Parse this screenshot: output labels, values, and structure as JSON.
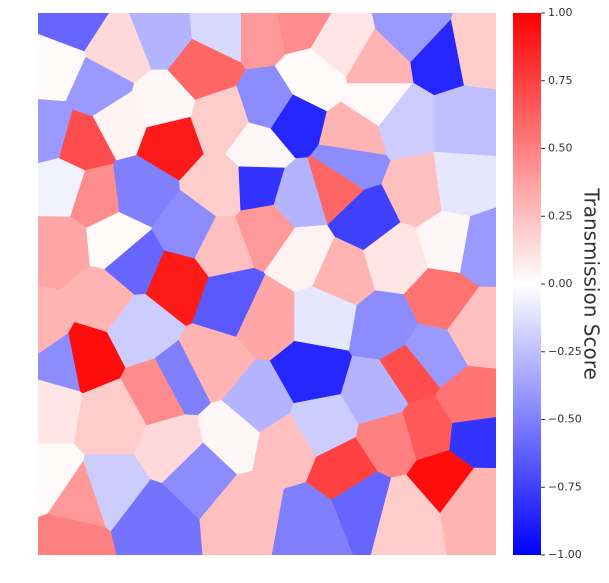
{
  "chart_data": {
    "type": "voronoi",
    "colormap": "bwr",
    "clim": [
      -1,
      1
    ],
    "xlim": [
      0,
      100
    ],
    "ylim": [
      0,
      100
    ],
    "colorbar": {
      "label": "Transmission Score",
      "ticks": [
        {
          "value": 1,
          "label": "1.00"
        },
        {
          "value": 0.75,
          "label": "0.75"
        },
        {
          "value": 0.5,
          "label": "0.50"
        },
        {
          "value": 0.25,
          "label": "0.25"
        },
        {
          "value": 0,
          "label": "0.00"
        },
        {
          "value": -0.25,
          "label": "−0.25"
        },
        {
          "value": -0.5,
          "label": "−0.50"
        },
        {
          "value": -0.75,
          "label": "−0.75"
        },
        {
          "value": -1,
          "label": "−1.00"
        }
      ]
    },
    "cells": [
      {
        "x": 28.8,
        "y": 76.6,
        "value": 0.9
      },
      {
        "x": 9.6,
        "y": 76.2,
        "value": 0.7
      },
      {
        "x": 10.3,
        "y": 36.9,
        "value": 0.95
      },
      {
        "x": 30.1,
        "y": 50.7,
        "value": 0.9
      },
      {
        "x": 88.4,
        "y": 14.2,
        "value": 0.95
      },
      {
        "x": 88.4,
        "y": 91.9,
        "value": -0.85
      },
      {
        "x": 55.5,
        "y": 80.3,
        "value": -0.85
      },
      {
        "x": 47.8,
        "y": 68.3,
        "value": -0.8
      },
      {
        "x": 59.8,
        "y": 33.6,
        "value": -0.85
      },
      {
        "x": 71.6,
        "y": 62.2,
        "value": -0.75
      },
      {
        "x": 95.2,
        "y": 22.1,
        "value": -0.8
      },
      {
        "x": 42.4,
        "y": 47,
        "value": -0.65
      },
      {
        "x": 81.2,
        "y": 34,
        "value": 0.7
      },
      {
        "x": 85.1,
        "y": 23,
        "value": 0.65
      },
      {
        "x": 94.3,
        "y": 27.7,
        "value": 0.55
      },
      {
        "x": 48.5,
        "y": 97,
        "value": 0.4
      },
      {
        "x": 57,
        "y": 98.5,
        "value": 0.45
      },
      {
        "x": 36,
        "y": 90,
        "value": 0.6
      },
      {
        "x": 65,
        "y": 68,
        "value": 0.6
      },
      {
        "x": 67,
        "y": 15.5,
        "value": 0.75
      },
      {
        "x": 7,
        "y": 99,
        "value": -0.6
      },
      {
        "x": 82,
        "y": 97,
        "value": -0.4
      },
      {
        "x": 2,
        "y": 78,
        "value": -0.4
      },
      {
        "x": 22,
        "y": 67,
        "value": -0.5
      },
      {
        "x": 21,
        "y": 54,
        "value": -0.6
      },
      {
        "x": 5,
        "y": 36,
        "value": -0.45
      },
      {
        "x": 31,
        "y": 32,
        "value": -0.5
      },
      {
        "x": 71,
        "y": 10,
        "value": -0.6
      },
      {
        "x": 59,
        "y": 6,
        "value": -0.5
      },
      {
        "x": 24.5,
        "y": 6.5,
        "value": -0.55
      },
      {
        "x": 26.6,
        "y": 30,
        "value": 0.45
      },
      {
        "x": 88,
        "y": 47,
        "value": 0.55
      },
      {
        "x": 49.5,
        "y": 60,
        "value": 0.4
      },
      {
        "x": 12.4,
        "y": 66,
        "value": 0.45
      },
      {
        "x": 7,
        "y": 3,
        "value": 0.5
      },
      {
        "x": 9,
        "y": 10,
        "value": 0.4
      },
      {
        "x": 77,
        "y": 21,
        "value": 0.5
      },
      {
        "x": 69,
        "y": 77.5,
        "value": 0.3
      },
      {
        "x": 68,
        "y": 72,
        "value": -0.45
      },
      {
        "x": 50.6,
        "y": 83,
        "value": -0.45
      },
      {
        "x": 33,
        "y": 60,
        "value": -0.45
      },
      {
        "x": 75.8,
        "y": 42,
        "value": -0.45
      },
      {
        "x": 13.5,
        "y": 86,
        "value": -0.4
      },
      {
        "x": 35,
        "y": 15.7,
        "value": -0.45
      },
      {
        "x": 85.6,
        "y": 37,
        "value": -0.4
      },
      {
        "x": 96.5,
        "y": 57,
        "value": -0.4
      },
      {
        "x": 4.8,
        "y": 57,
        "value": 0.35
      },
      {
        "x": 0.5,
        "y": 41.5,
        "value": 0.3
      },
      {
        "x": 18,
        "y": 93,
        "value": 0.15
      },
      {
        "x": 27,
        "y": 96,
        "value": -0.3
      },
      {
        "x": 40,
        "y": 97,
        "value": -0.15
      },
      {
        "x": 66,
        "y": 94,
        "value": 0.1
      },
      {
        "x": 74,
        "y": 90,
        "value": 0.3
      },
      {
        "x": 95,
        "y": 93,
        "value": 0.2
      },
      {
        "x": 93,
        "y": 80,
        "value": -0.25
      },
      {
        "x": 80,
        "y": 80,
        "value": -0.2
      },
      {
        "x": 40,
        "y": 80,
        "value": 0.2
      },
      {
        "x": 18,
        "y": 80,
        "value": 0.05
      },
      {
        "x": 3,
        "y": 90,
        "value": 0.02
      },
      {
        "x": 60,
        "y": 88,
        "value": 0.02
      },
      {
        "x": 83,
        "y": 67,
        "value": 0.25
      },
      {
        "x": 92,
        "y": 68,
        "value": -0.1
      },
      {
        "x": 57,
        "y": 66,
        "value": -0.3
      },
      {
        "x": 40,
        "y": 68,
        "value": 0.2
      },
      {
        "x": 5,
        "y": 68,
        "value": -0.05
      },
      {
        "x": 17,
        "y": 58,
        "value": 0.02
      },
      {
        "x": 40,
        "y": 57,
        "value": 0.25
      },
      {
        "x": 58,
        "y": 55,
        "value": 0.05
      },
      {
        "x": 66,
        "y": 52,
        "value": 0.3
      },
      {
        "x": 78,
        "y": 55,
        "value": 0.1
      },
      {
        "x": 14,
        "y": 47,
        "value": 0.3
      },
      {
        "x": 22,
        "y": 42,
        "value": -0.2
      },
      {
        "x": 50,
        "y": 44,
        "value": 0.35
      },
      {
        "x": 62,
        "y": 44,
        "value": -0.1
      },
      {
        "x": 96,
        "y": 42,
        "value": 0.25
      },
      {
        "x": 38,
        "y": 35,
        "value": 0.3
      },
      {
        "x": 48,
        "y": 28,
        "value": -0.3
      },
      {
        "x": 2,
        "y": 27,
        "value": 0.1
      },
      {
        "x": 16,
        "y": 25,
        "value": 0.2
      },
      {
        "x": 54,
        "y": 20,
        "value": 0.25
      },
      {
        "x": 62,
        "y": 24,
        "value": -0.2
      },
      {
        "x": 74,
        "y": 30,
        "value": -0.3
      },
      {
        "x": 95,
        "y": 10,
        "value": 0.3
      },
      {
        "x": 80,
        "y": 8,
        "value": 0.2
      },
      {
        "x": 46,
        "y": 8,
        "value": 0.25
      },
      {
        "x": 16,
        "y": 12,
        "value": -0.2
      },
      {
        "x": 2,
        "y": 14,
        "value": 0.02
      },
      {
        "x": 30,
        "y": 20,
        "value": 0.15
      },
      {
        "x": 42,
        "y": 22,
        "value": 0.03
      },
      {
        "x": 90,
        "y": 58,
        "value": 0.03
      },
      {
        "x": 27,
        "y": 83,
        "value": 0.03
      },
      {
        "x": 48,
        "y": 75,
        "value": 0.03
      },
      {
        "x": 74,
        "y": 84,
        "value": 0.02
      }
    ]
  }
}
